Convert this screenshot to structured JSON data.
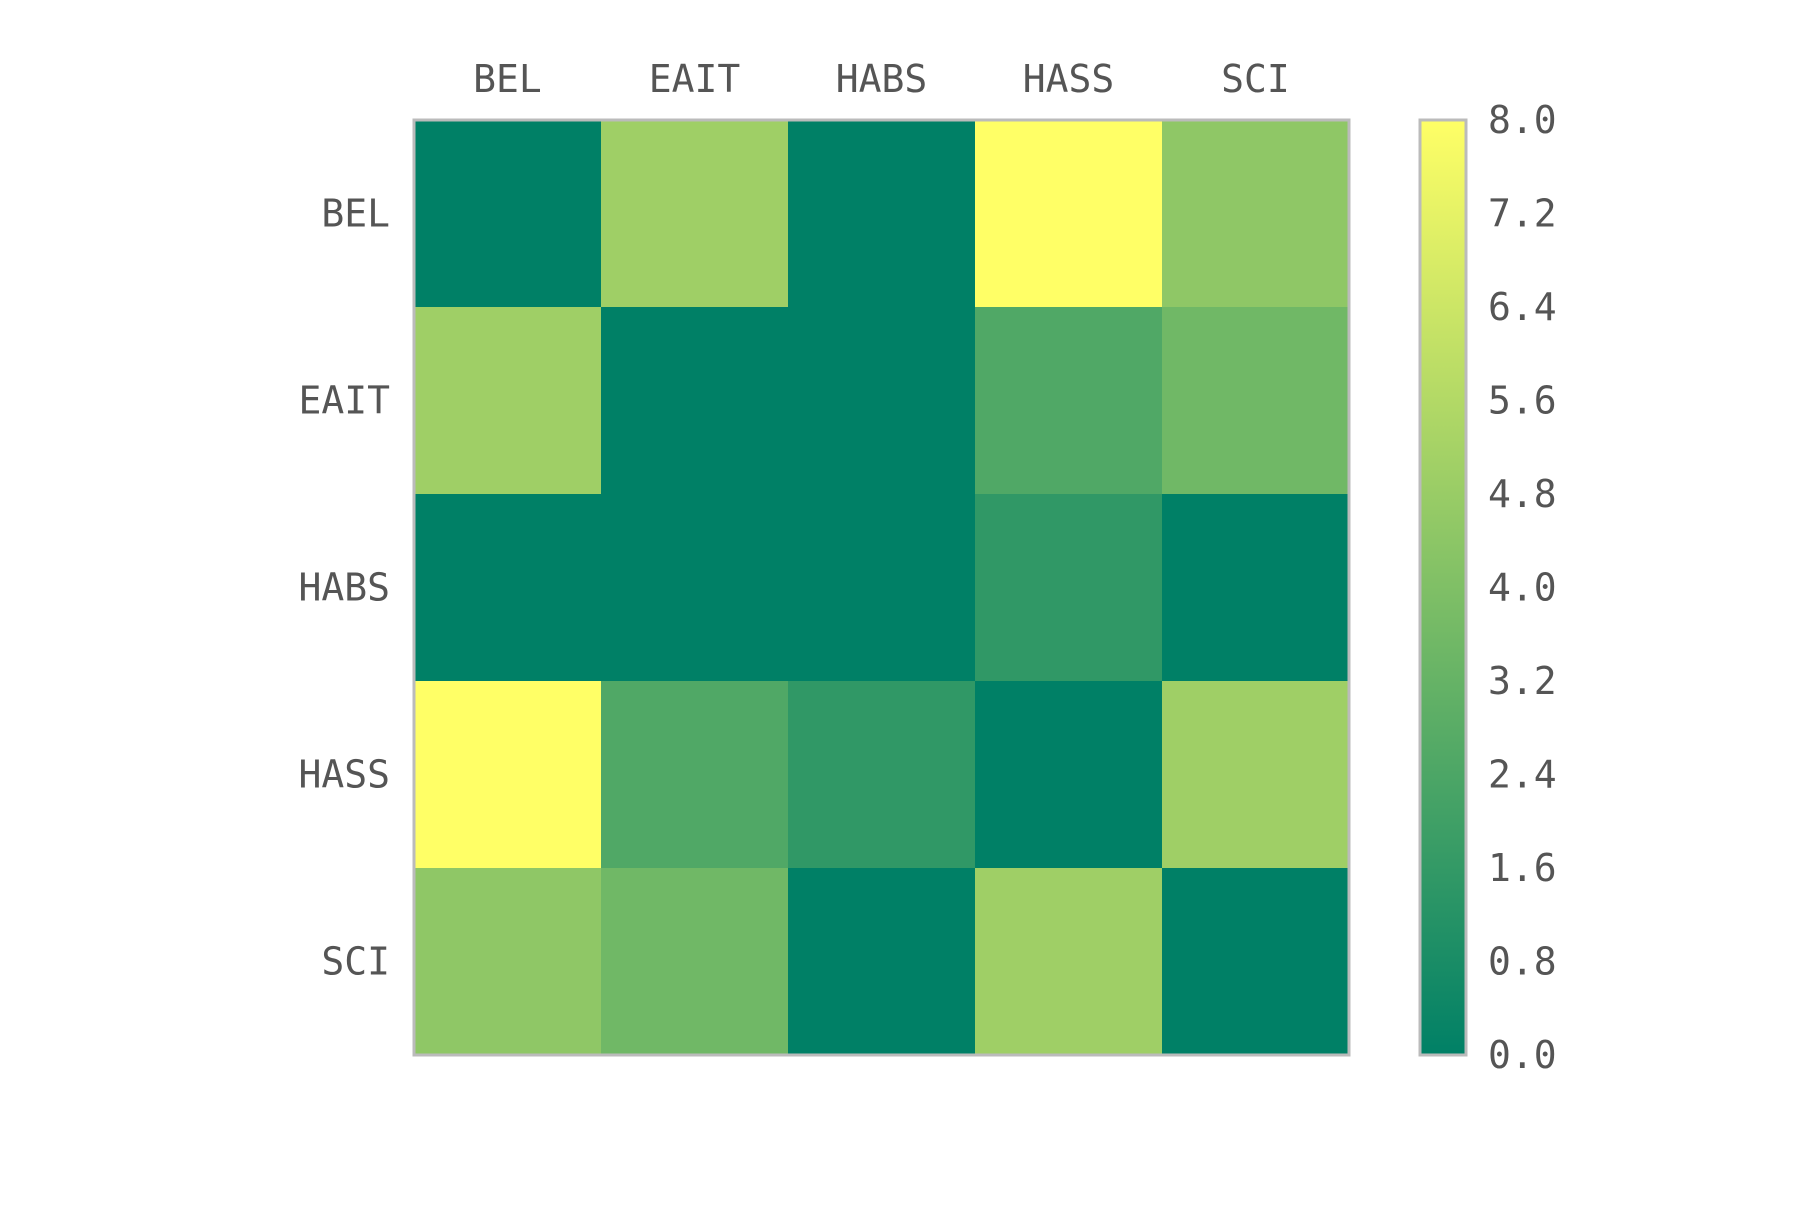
{
  "chart_data": {
    "type": "heatmap",
    "x_categories": [
      "BEL",
      "EAIT",
      "HABS",
      "HASS",
      "SCI"
    ],
    "y_categories": [
      "BEL",
      "EAIT",
      "HABS",
      "HASS",
      "SCI"
    ],
    "values": [
      [
        0,
        5,
        0,
        8,
        4.5
      ],
      [
        5,
        0,
        0,
        2.5,
        3.5
      ],
      [
        0,
        0,
        0,
        1.5,
        0
      ],
      [
        8,
        2.5,
        1.5,
        0,
        5
      ],
      [
        4.5,
        3.5,
        0,
        5,
        0
      ]
    ],
    "colorbar": {
      "min": 0.0,
      "max": 8.0,
      "ticks": [
        "0.0",
        "0.8",
        "1.6",
        "2.4",
        "3.2",
        "4.0",
        "4.8",
        "5.6",
        "6.4",
        "7.2",
        "8.0"
      ]
    },
    "colormap": {
      "name": "summer",
      "low": "#008066",
      "high": "#ffff66"
    },
    "frame_color": "#bbbbbb",
    "text_color": "#555555"
  }
}
